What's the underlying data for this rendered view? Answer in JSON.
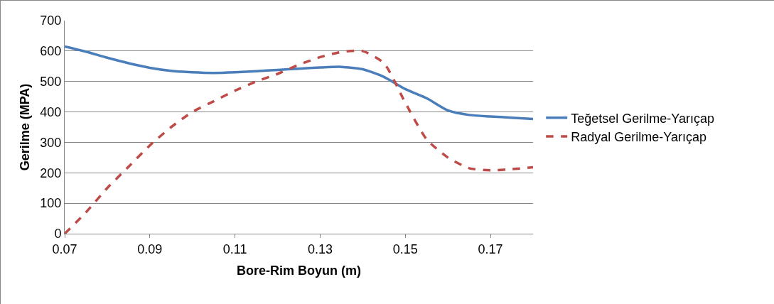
{
  "chart_data": {
    "type": "line",
    "xlabel": "Bore-Rim Boyun (m)",
    "ylabel": "Gerilme (MPA)",
    "xlim": [
      0.07,
      0.18
    ],
    "xticks": [
      0.07,
      0.09,
      0.11,
      0.13,
      0.15,
      0.17
    ],
    "ylim": [
      0,
      700
    ],
    "yticks": [
      0,
      100,
      200,
      300,
      400,
      500,
      600,
      700
    ],
    "grid": "y",
    "legend": "right",
    "marker": "none",
    "x": [
      0.07,
      0.075,
      0.08,
      0.085,
      0.09,
      0.095,
      0.1,
      0.105,
      0.11,
      0.115,
      0.12,
      0.125,
      0.13,
      0.135,
      0.14,
      0.145,
      0.15,
      0.155,
      0.16,
      0.165,
      0.17,
      0.175,
      0.18
    ],
    "series": [
      {
        "name": "Teğetsel Gerilme-Yarıçap",
        "color": "#4a7ebb",
        "line_style": "solid",
        "values": [
          615,
          598,
          578,
          560,
          545,
          535,
          530,
          528,
          530,
          534,
          538,
          542,
          546,
          548,
          540,
          515,
          475,
          445,
          405,
          390,
          385,
          381,
          377
        ]
      },
      {
        "name": "Radyal Gerilme-Yarıçap",
        "color": "#be4b48",
        "line_style": "dashed",
        "values": [
          0,
          70,
          150,
          220,
          290,
          350,
          400,
          435,
          470,
          500,
          525,
          555,
          580,
          597,
          600,
          560,
          430,
          310,
          250,
          215,
          208,
          212,
          218
        ]
      }
    ]
  }
}
